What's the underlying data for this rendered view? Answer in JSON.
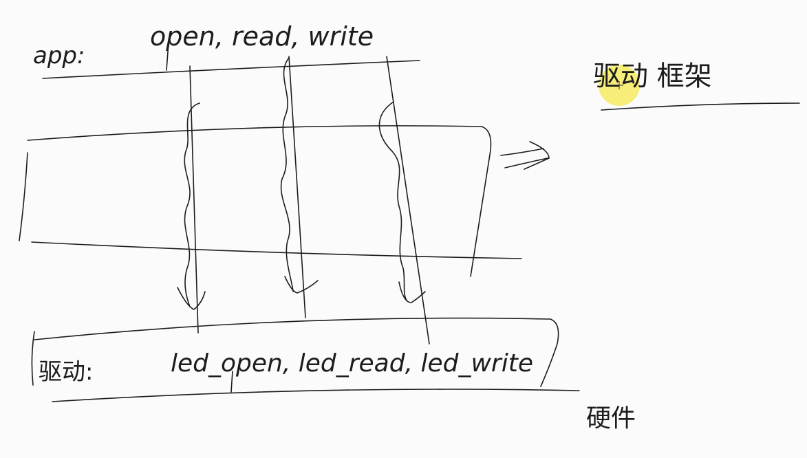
{
  "app_label": "app:",
  "app_calls": "open, read, write",
  "driver_label": "驱动:",
  "driver_calls": "led_open, led_read, led_write",
  "framework_label": "驱动 框架",
  "hardware_label": "硬件",
  "colors": {
    "ink": "#1c1c1c",
    "background": "#fbfbfb",
    "highlight": "#f5e94d"
  }
}
